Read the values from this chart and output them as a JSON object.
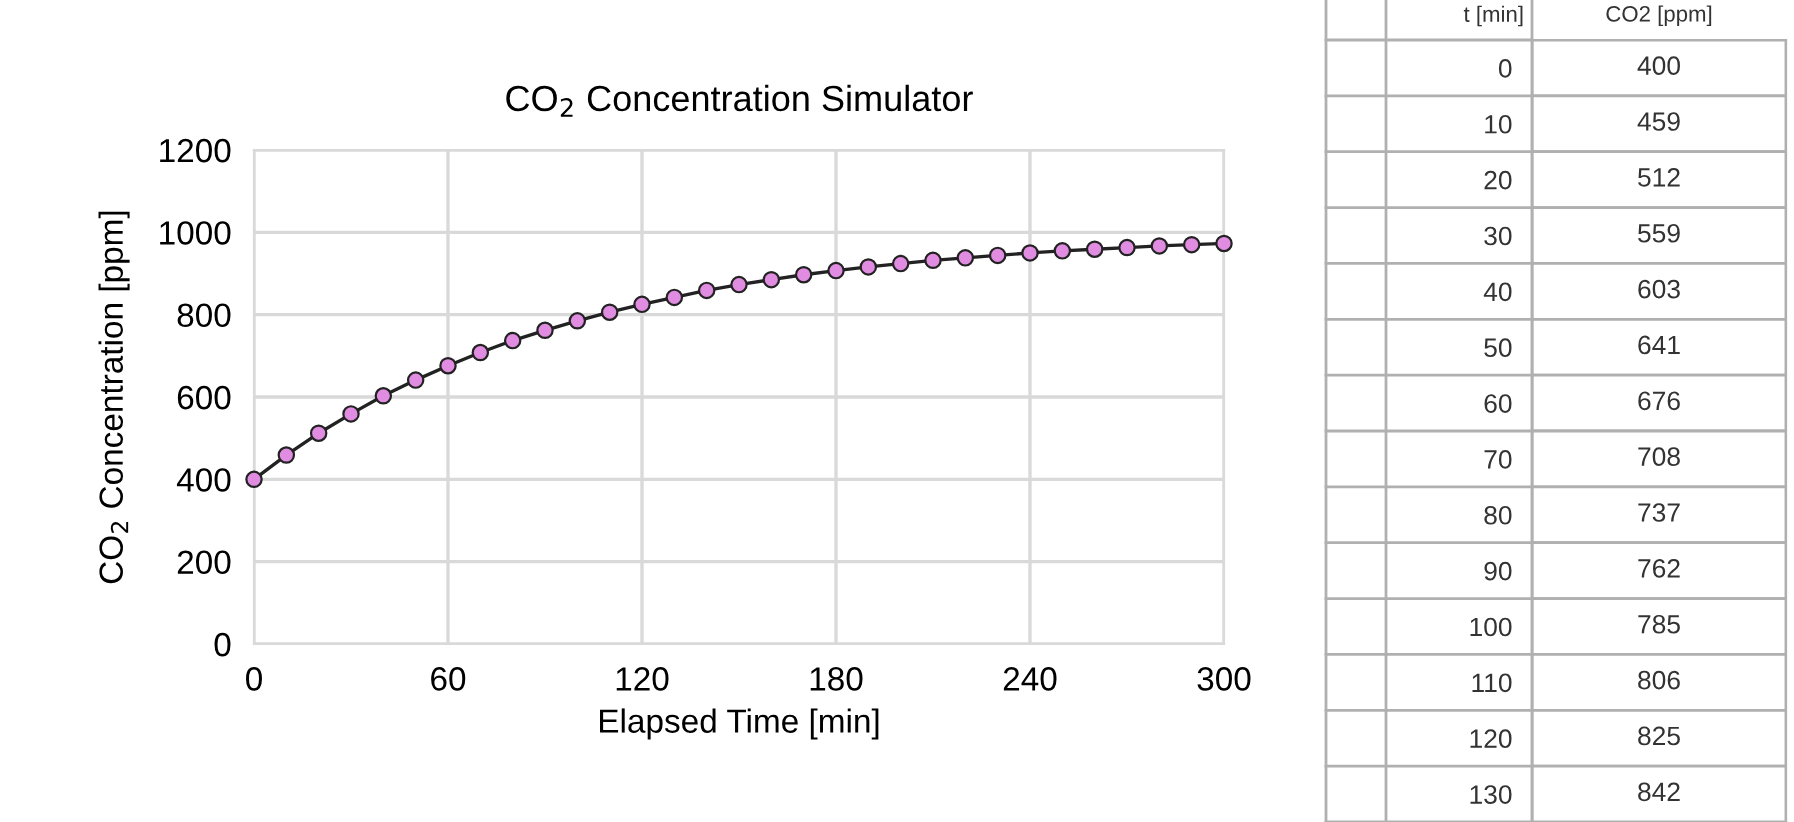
{
  "chart_data": [
    {
      "type": "line",
      "title": "CO$_{2}$ Concentration Simulator",
      "xlabel": "Elapsed Time [min]",
      "ylabel": "CO$_{2}$ Concentration [ppm]",
      "x": [
        0,
        10,
        20,
        30,
        40,
        50,
        60,
        70,
        80,
        90,
        100,
        110,
        120,
        130,
        140,
        150,
        160,
        170,
        180,
        190,
        200,
        210,
        220,
        230,
        240,
        250,
        260,
        270,
        280,
        290,
        300
      ],
      "series": [
        {
          "color": "#e08ce0",
          "values": [
            400,
            459,
            512,
            559,
            603,
            641,
            676,
            708,
            737,
            762,
            785,
            806,
            825,
            842,
            859,
            873,
            885,
            897,
            907,
            916,
            924,
            932,
            938,
            944,
            950,
            955,
            959,
            963,
            967,
            970,
            973
          ]
        }
      ],
      "xlim": [
        0,
        300
      ],
      "xticks": [
        0,
        60,
        120,
        180,
        240,
        300
      ],
      "ylim": [
        0,
        1200
      ],
      "yticks": [
        0,
        200,
        400,
        600,
        800,
        1000,
        1200
      ],
      "grid": true,
      "marker": "circle",
      "line_style": "solid"
    },
    {
      "type": "heatmap",
      "ylabel": "t [min]",
      "categories": [
        "CO2 [ppm]"
      ],
      "y_categories": [
        "0",
        "10",
        "20",
        "30",
        "40",
        "50",
        "60",
        "70",
        "80",
        "90",
        "100",
        "110",
        "120",
        "130"
      ],
      "cells": [
        [
          400
        ],
        [
          459
        ],
        [
          512
        ],
        [
          559
        ],
        [
          603
        ],
        [
          641
        ],
        [
          676
        ],
        [
          708
        ],
        [
          737
        ],
        [
          762
        ],
        [
          785
        ],
        [
          806
        ],
        [
          825
        ],
        [
          842
        ]
      ],
      "data_labels": true
    }
  ]
}
